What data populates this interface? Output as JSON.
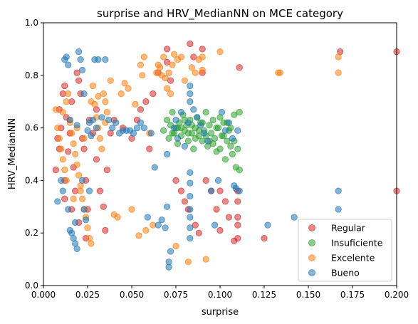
{
  "chart_data": {
    "type": "scatter",
    "title": "surprise and HRV_MedianNN on MCE category",
    "xlabel": "surprise",
    "ylabel": "HRV_MedianNN",
    "xlim": [
      0.0,
      0.2
    ],
    "ylim": [
      0.0,
      1.0
    ],
    "xticks": [
      "0.000",
      "0.025",
      "0.050",
      "0.075",
      "0.100",
      "0.125",
      "0.150",
      "0.175",
      "0.200"
    ],
    "yticks": [
      "0.0",
      "0.2",
      "0.4",
      "0.6",
      "0.8",
      "1.0"
    ],
    "grid": false,
    "legend_position": "lower-right",
    "series": [
      {
        "name": "Regular",
        "color": "#d62728",
        "points": [
          [
            0.007,
            0.44
          ],
          [
            0.008,
            0.56
          ],
          [
            0.009,
            0.67
          ],
          [
            0.01,
            0.6
          ],
          [
            0.011,
            0.73
          ],
          [
            0.012,
            0.76
          ],
          [
            0.013,
            0.64
          ],
          [
            0.014,
            0.51
          ],
          [
            0.015,
            0.58
          ],
          [
            0.016,
            0.7
          ],
          [
            0.017,
            0.45
          ],
          [
            0.018,
            0.36
          ],
          [
            0.019,
            0.81
          ],
          [
            0.02,
            0.78
          ],
          [
            0.021,
            0.73
          ],
          [
            0.022,
            0.56
          ],
          [
            0.023,
            0.52
          ],
          [
            0.024,
            0.4
          ],
          [
            0.025,
            0.29
          ],
          [
            0.026,
            0.63
          ],
          [
            0.028,
            0.58
          ],
          [
            0.03,
            0.67
          ],
          [
            0.032,
            0.36
          ],
          [
            0.034,
            0.3
          ],
          [
            0.035,
            0.21
          ],
          [
            0.038,
            0.58
          ],
          [
            0.04,
            0.63
          ],
          [
            0.045,
            0.6
          ],
          [
            0.05,
            0.56
          ],
          [
            0.053,
            0.63
          ],
          [
            0.055,
            0.67
          ],
          [
            0.058,
            0.7
          ],
          [
            0.06,
            0.52
          ],
          [
            0.062,
            0.73
          ],
          [
            0.065,
            0.81
          ],
          [
            0.07,
            0.85
          ],
          [
            0.07,
            0.9
          ],
          [
            0.072,
            0.78
          ],
          [
            0.075,
            0.4
          ],
          [
            0.078,
            0.36
          ],
          [
            0.08,
            0.32
          ],
          [
            0.082,
            0.29
          ],
          [
            0.083,
            0.92
          ],
          [
            0.085,
            0.87
          ],
          [
            0.086,
            0.23
          ],
          [
            0.088,
            0.2
          ],
          [
            0.09,
            0.9
          ],
          [
            0.09,
            0.81
          ],
          [
            0.092,
            0.4
          ],
          [
            0.095,
            0.36
          ],
          [
            0.098,
            0.29
          ],
          [
            0.1,
            0.36
          ],
          [
            0.1,
            0.21
          ],
          [
            0.103,
            0.32
          ],
          [
            0.105,
            0.26
          ],
          [
            0.108,
            0.17
          ],
          [
            0.11,
            0.36
          ],
          [
            0.11,
            0.32
          ],
          [
            0.11,
            0.26
          ],
          [
            0.11,
            0.23
          ],
          [
            0.11,
            0.18
          ],
          [
            0.111,
            0.83
          ],
          [
            0.125,
            0.18
          ],
          [
            0.168,
            0.89
          ],
          [
            0.2,
            0.89
          ],
          [
            0.2,
            0.36
          ],
          [
            0.012,
            0.4
          ],
          [
            0.016,
            0.29
          ],
          [
            0.02,
            0.24
          ],
          [
            0.024,
            0.18
          ],
          [
            0.03,
            0.48
          ],
          [
            0.036,
            0.44
          ],
          [
            0.012,
            0.33
          ],
          [
            0.009,
            0.52
          ]
        ]
      },
      {
        "name": "Insuficiente",
        "color": "#2ca02c",
        "points": [
          [
            0.068,
            0.59
          ],
          [
            0.07,
            0.63
          ],
          [
            0.071,
            0.56
          ],
          [
            0.072,
            0.61
          ],
          [
            0.073,
            0.66
          ],
          [
            0.074,
            0.58
          ],
          [
            0.075,
            0.6
          ],
          [
            0.076,
            0.54
          ],
          [
            0.077,
            0.62
          ],
          [
            0.078,
            0.57
          ],
          [
            0.079,
            0.65
          ],
          [
            0.08,
            0.59
          ],
          [
            0.081,
            0.61
          ],
          [
            0.082,
            0.55
          ],
          [
            0.083,
            0.63
          ],
          [
            0.084,
            0.58
          ],
          [
            0.085,
            0.52
          ],
          [
            0.086,
            0.6
          ],
          [
            0.087,
            0.64
          ],
          [
            0.088,
            0.57
          ],
          [
            0.089,
            0.62
          ],
          [
            0.09,
            0.55
          ],
          [
            0.091,
            0.59
          ],
          [
            0.092,
            0.66
          ],
          [
            0.093,
            0.53
          ],
          [
            0.094,
            0.61
          ],
          [
            0.095,
            0.58
          ],
          [
            0.096,
            0.63
          ],
          [
            0.097,
            0.56
          ],
          [
            0.098,
            0.51
          ],
          [
            0.099,
            0.6
          ],
          [
            0.1,
            0.64
          ],
          [
            0.101,
            0.57
          ],
          [
            0.102,
            0.62
          ],
          [
            0.103,
            0.48
          ],
          [
            0.104,
            0.55
          ],
          [
            0.105,
            0.59
          ],
          [
            0.106,
            0.53
          ],
          [
            0.107,
            0.5
          ],
          [
            0.108,
            0.65
          ],
          [
            0.109,
            0.45
          ],
          [
            0.11,
            0.52
          ],
          [
            0.111,
            0.44
          ],
          [
            0.111,
            0.66
          ],
          [
            0.076,
            0.6
          ],
          [
            0.08,
            0.63
          ],
          [
            0.084,
            0.61
          ],
          [
            0.088,
            0.59
          ],
          [
            0.092,
            0.57
          ],
          [
            0.096,
            0.54
          ],
          [
            0.1,
            0.52
          ],
          [
            0.104,
            0.62
          ],
          [
            0.09,
            0.62
          ],
          [
            0.094,
            0.55
          ],
          [
            0.082,
            0.58
          ],
          [
            0.086,
            0.56
          ],
          [
            0.078,
            0.6
          ],
          [
            0.098,
            0.6
          ],
          [
            0.102,
            0.57
          ],
          [
            0.106,
            0.6
          ],
          [
            0.073,
            0.58
          ],
          [
            0.108,
            0.55
          ]
        ]
      },
      {
        "name": "Excelente",
        "color": "#ff7f0e",
        "points": [
          [
            0.007,
            0.67
          ],
          [
            0.008,
            0.6
          ],
          [
            0.009,
            0.56
          ],
          [
            0.01,
            0.52
          ],
          [
            0.011,
            0.48
          ],
          [
            0.012,
            0.44
          ],
          [
            0.013,
            0.7
          ],
          [
            0.014,
            0.73
          ],
          [
            0.015,
            0.63
          ],
          [
            0.016,
            0.58
          ],
          [
            0.017,
            0.54
          ],
          [
            0.018,
            0.5
          ],
          [
            0.019,
            0.46
          ],
          [
            0.02,
            0.42
          ],
          [
            0.021,
            0.38
          ],
          [
            0.022,
            0.33
          ],
          [
            0.023,
            0.29
          ],
          [
            0.024,
            0.26
          ],
          [
            0.025,
            0.22
          ],
          [
            0.026,
            0.18
          ],
          [
            0.027,
            0.16
          ],
          [
            0.028,
            0.76
          ],
          [
            0.029,
            0.69
          ],
          [
            0.03,
            0.64
          ],
          [
            0.031,
            0.6
          ],
          [
            0.032,
            0.56
          ],
          [
            0.033,
            0.52
          ],
          [
            0.034,
            0.73
          ],
          [
            0.035,
            0.7
          ],
          [
            0.036,
            0.66
          ],
          [
            0.038,
            0.78
          ],
          [
            0.04,
            0.27
          ],
          [
            0.042,
            0.26
          ],
          [
            0.044,
            0.73
          ],
          [
            0.046,
            0.77
          ],
          [
            0.048,
            0.75
          ],
          [
            0.05,
            0.29
          ],
          [
            0.052,
            0.69
          ],
          [
            0.054,
            0.19
          ],
          [
            0.055,
            0.84
          ],
          [
            0.056,
            0.8
          ],
          [
            0.057,
            0.87
          ],
          [
            0.058,
            0.21
          ],
          [
            0.06,
            0.58
          ],
          [
            0.062,
            0.23
          ],
          [
            0.064,
            0.81
          ],
          [
            0.065,
            0.84
          ],
          [
            0.066,
            0.83
          ],
          [
            0.067,
            0.8
          ],
          [
            0.068,
            0.87
          ],
          [
            0.069,
            0.79
          ],
          [
            0.07,
            0.75
          ],
          [
            0.071,
            0.81
          ],
          [
            0.072,
            0.73
          ],
          [
            0.073,
            0.84
          ],
          [
            0.074,
            0.88
          ],
          [
            0.075,
            0.15
          ],
          [
            0.076,
            0.86
          ],
          [
            0.078,
            0.87
          ],
          [
            0.08,
            0.78
          ],
          [
            0.082,
            0.09
          ],
          [
            0.084,
            0.83
          ],
          [
            0.086,
            0.81
          ],
          [
            0.088,
            0.86
          ],
          [
            0.09,
            0.87
          ],
          [
            0.09,
            0.82
          ],
          [
            0.092,
            0.1
          ],
          [
            0.1,
            0.89
          ],
          [
            0.133,
            0.81
          ],
          [
            0.134,
            0.81
          ],
          [
            0.167,
            0.81
          ],
          [
            0.167,
            0.87
          ],
          [
            0.011,
            0.66
          ],
          [
            0.015,
            0.62
          ],
          [
            0.019,
            0.6
          ],
          [
            0.023,
            0.56
          ],
          [
            0.027,
            0.7
          ],
          [
            0.031,
            0.72
          ],
          [
            0.035,
            0.62
          ],
          [
            0.013,
            0.4
          ],
          [
            0.017,
            0.33
          ],
          [
            0.021,
            0.36
          ]
        ]
      },
      {
        "name": "Bueno",
        "color": "#1f77b4",
        "points": [
          [
            0.008,
            0.32
          ],
          [
            0.01,
            0.4
          ],
          [
            0.011,
            0.36
          ],
          [
            0.012,
            0.86
          ],
          [
            0.013,
            0.87
          ],
          [
            0.014,
            0.84
          ],
          [
            0.015,
            0.21
          ],
          [
            0.016,
            0.2
          ],
          [
            0.017,
            0.18
          ],
          [
            0.018,
            0.16
          ],
          [
            0.019,
            0.14
          ],
          [
            0.02,
            0.89
          ],
          [
            0.021,
            0.86
          ],
          [
            0.022,
            0.82
          ],
          [
            0.023,
            0.29
          ],
          [
            0.024,
            0.25
          ],
          [
            0.025,
            0.59
          ],
          [
            0.026,
            0.62
          ],
          [
            0.027,
            0.57
          ],
          [
            0.028,
            0.63
          ],
          [
            0.029,
            0.86
          ],
          [
            0.03,
            0.6
          ],
          [
            0.031,
            0.86
          ],
          [
            0.033,
            0.64
          ],
          [
            0.035,
            0.86
          ],
          [
            0.037,
            0.63
          ],
          [
            0.039,
            0.6
          ],
          [
            0.041,
            0.62
          ],
          [
            0.043,
            0.58
          ],
          [
            0.045,
            0.59
          ],
          [
            0.047,
            0.59
          ],
          [
            0.049,
            0.59
          ],
          [
            0.051,
            0.58
          ],
          [
            0.053,
            0.6
          ],
          [
            0.055,
            0.62
          ],
          [
            0.057,
            0.6
          ],
          [
            0.059,
            0.26
          ],
          [
            0.061,
            0.58
          ],
          [
            0.063,
            0.45
          ],
          [
            0.065,
            0.23
          ],
          [
            0.067,
            0.25
          ],
          [
            0.069,
            0.22
          ],
          [
            0.07,
            0.5
          ],
          [
            0.07,
            0.3
          ],
          [
            0.071,
            0.07
          ],
          [
            0.071,
            0.09
          ],
          [
            0.072,
            0.13
          ],
          [
            0.074,
            0.6
          ],
          [
            0.075,
            0.63
          ],
          [
            0.076,
            0.56
          ],
          [
            0.078,
            0.66
          ],
          [
            0.08,
            0.53
          ],
          [
            0.082,
            0.62
          ],
          [
            0.083,
            0.73
          ],
          [
            0.083,
            0.7
          ],
          [
            0.083,
            0.76
          ],
          [
            0.083,
            0.43
          ],
          [
            0.083,
            0.39
          ],
          [
            0.083,
            0.34
          ],
          [
            0.083,
            0.29
          ],
          [
            0.083,
            0.26
          ],
          [
            0.083,
            0.22
          ],
          [
            0.083,
            0.18
          ],
          [
            0.085,
            0.67
          ],
          [
            0.087,
            0.64
          ],
          [
            0.089,
            0.61
          ],
          [
            0.091,
            0.58
          ],
          [
            0.093,
            0.55
          ],
          [
            0.095,
            0.36
          ],
          [
            0.097,
            0.23
          ],
          [
            0.099,
            0.4
          ],
          [
            0.101,
            0.66
          ],
          [
            0.103,
            0.59
          ],
          [
            0.105,
            0.62
          ],
          [
            0.107,
            0.56
          ],
          [
            0.108,
            0.38
          ],
          [
            0.109,
            0.37
          ],
          [
            0.11,
            0.59
          ],
          [
            0.111,
            0.36
          ],
          [
            0.127,
            0.23
          ],
          [
            0.142,
            0.26
          ],
          [
            0.167,
            0.36
          ],
          [
            0.167,
            0.29
          ],
          [
            0.014,
            0.29
          ],
          [
            0.018,
            0.24
          ],
          [
            0.022,
            0.4
          ],
          [
            0.026,
            0.36
          ],
          [
            0.015,
            0.63
          ],
          [
            0.019,
            0.61
          ],
          [
            0.023,
            0.73
          ]
        ]
      }
    ]
  }
}
